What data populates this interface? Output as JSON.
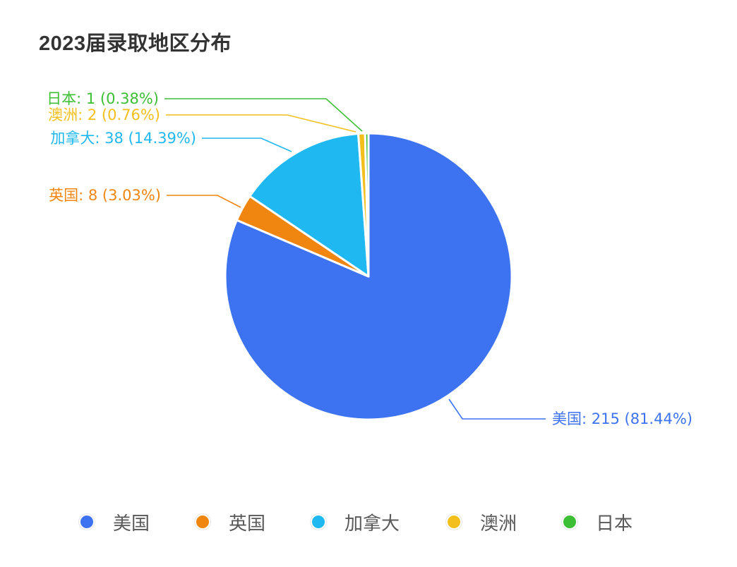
{
  "title": "2023届录取地区分布",
  "chart_data": {
    "type": "pie",
    "title": "2023届录取地区分布",
    "categories": [
      "美国",
      "英国",
      "加拿大",
      "澳洲",
      "日本"
    ],
    "values": [
      215,
      8,
      38,
      2,
      1
    ],
    "percentages": [
      81.44,
      3.03,
      14.39,
      0.76,
      0.38
    ],
    "colors": [
      "#3d73f0",
      "#f0850f",
      "#1fb8f0",
      "#f2bf1c",
      "#3cbf34"
    ],
    "labels": [
      "美国: 215 (81.44%)",
      "英国: 8 (3.03%)",
      "加拿大: 38 (14.39%)",
      "澳洲: 2 (0.76%)",
      "日本: 1 (0.38%)"
    ],
    "legend_position": "bottom",
    "start_angle": "12 o'clock, clockwise"
  },
  "legend": [
    {
      "label": "美国",
      "color": "#3d73f0"
    },
    {
      "label": "英国",
      "color": "#f0850f"
    },
    {
      "label": "加拿大",
      "color": "#1fb8f0"
    },
    {
      "label": "澳洲",
      "color": "#f2bf1c"
    },
    {
      "label": "日本",
      "color": "#3cbf34"
    }
  ]
}
